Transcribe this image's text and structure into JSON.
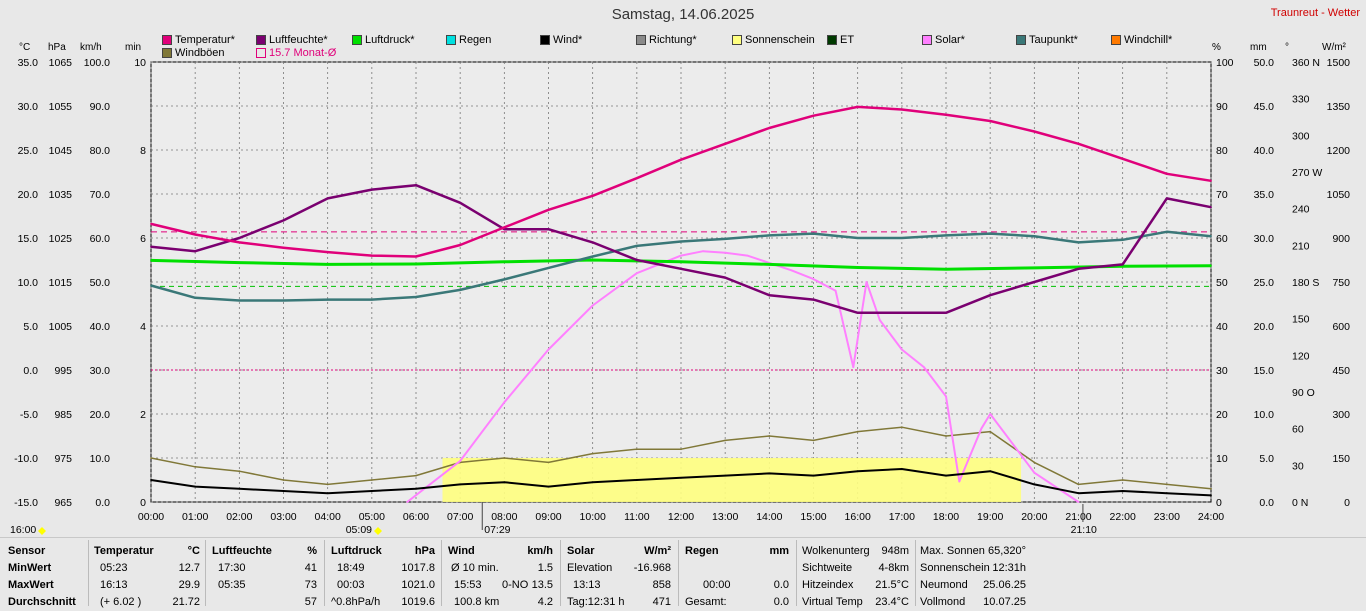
{
  "title": "Samstag, 14.06.2025",
  "brand": "Traunreut - Wetter",
  "legend": [
    {
      "label": "Temperatur*",
      "color": "#e0007a",
      "hollow": false
    },
    {
      "label": "Luftfeuchte*",
      "color": "#7a0070",
      "hollow": false
    },
    {
      "label": "Luftdruck*",
      "color": "#00e000",
      "hollow": false
    },
    {
      "label": "Regen",
      "color": "#00e0e0",
      "hollow": false
    },
    {
      "label": "Wind*",
      "color": "#000000",
      "hollow": false
    },
    {
      "label": "Richtung*",
      "color": "#8a8a8a",
      "hollow": false
    },
    {
      "label": "Sonnenschein",
      "color": "#ffff80",
      "hollow": false
    },
    {
      "label": "ET",
      "color": "#003a00",
      "hollow": false
    },
    {
      "label": "Solar*",
      "color": "#ff80ff",
      "hollow": false
    },
    {
      "label": "Taupunkt*",
      "color": "#3a7878",
      "hollow": false
    },
    {
      "label": "Windchill*",
      "color": "#ff7a00",
      "hollow": false
    },
    {
      "label": "Windböen",
      "color": "#807838",
      "hollow": false
    },
    {
      "label": "15.7 Monat-Ø",
      "color": "#e0007a",
      "hollow": true
    }
  ],
  "units_left": [
    "°C",
    "hPa",
    "km/h",
    "min"
  ],
  "units_right": [
    "%",
    "mm",
    "°",
    "W/m²"
  ],
  "axes": {
    "temp": [
      "35.0",
      "30.0",
      "25.0",
      "20.0",
      "15.0",
      "10.0",
      "5.0",
      "0.0",
      "-5.0",
      "-10.0",
      "-15.0"
    ],
    "press": [
      "1065",
      "1055",
      "1045",
      "1035",
      "1025",
      "1015",
      "1005",
      "995",
      "985",
      "975",
      "965"
    ],
    "wind": [
      "100.0",
      "90.0",
      "80.0",
      "70.0",
      "60.0",
      "50.0",
      "40.0",
      "30.0",
      "20.0",
      "10.0",
      "0.0"
    ],
    "min": [
      "10",
      "8",
      "6",
      "4",
      "2",
      "0"
    ],
    "hum": [
      "100",
      "90",
      "80",
      "70",
      "60",
      "50",
      "40",
      "30",
      "20",
      "10",
      "0"
    ],
    "rain": [
      "50.0",
      "45.0",
      "40.0",
      "35.0",
      "30.0",
      "25.0",
      "20.0",
      "15.0",
      "10.0",
      "5.0",
      "0.0"
    ],
    "dir": [
      "360 N",
      "330",
      "300",
      "270 W",
      "240",
      "210",
      "180 S",
      "150",
      "120",
      "90  O",
      "60",
      "30",
      "0  N"
    ],
    "solar": [
      "1500",
      "1350",
      "1200",
      "1050",
      "900",
      "750",
      "600",
      "450",
      "300",
      "150",
      "0"
    ],
    "time": [
      "00:00",
      "01:00",
      "02:00",
      "03:00",
      "04:00",
      "05:00",
      "06:00",
      "07:00",
      "08:00",
      "09:00",
      "10:00",
      "11:00",
      "12:00",
      "13:00",
      "14:00",
      "15:00",
      "16:00",
      "17:00",
      "18:00",
      "19:00",
      "20:00",
      "21:00",
      "22:00",
      "23:00",
      "24:00"
    ]
  },
  "markers": {
    "left": "16:00",
    "sunrise": "05:09",
    "noon": "07:29",
    "sunset": "21:10"
  },
  "chart_data": {
    "type": "line",
    "title": "Samstag, 14.06.2025",
    "x_range": [
      0,
      24
    ],
    "series": [
      {
        "name": "Temperatur*",
        "axis": "°C",
        "ylim": [
          -15,
          35
        ],
        "x": [
          0,
          1,
          2,
          3,
          4,
          5,
          6,
          7,
          8,
          9,
          10,
          11,
          12,
          13,
          14,
          15,
          16,
          17,
          18,
          19,
          20,
          21,
          22,
          23,
          24
        ],
        "values": [
          16.6,
          15.4,
          14.5,
          13.9,
          13.4,
          13.0,
          12.9,
          14.2,
          16.2,
          18.2,
          19.8,
          21.8,
          23.9,
          25.7,
          27.5,
          28.9,
          29.9,
          29.6,
          29.0,
          28.3,
          27.1,
          25.7,
          24.0,
          22.3,
          21.5
        ]
      },
      {
        "name": "Luftfeuchte*",
        "axis": "%",
        "ylim": [
          0,
          100
        ],
        "x": [
          0,
          1,
          2,
          3,
          4,
          5,
          6,
          7,
          8,
          9,
          10,
          11,
          12,
          13,
          14,
          15,
          16,
          17,
          18,
          19,
          20,
          21,
          22,
          23,
          24
        ],
        "values": [
          58,
          57,
          60,
          64,
          69,
          71,
          72,
          68,
          62,
          62,
          59,
          55,
          53,
          51,
          47,
          46,
          43,
          43,
          43,
          47,
          50,
          53,
          54,
          69,
          67
        ]
      },
      {
        "name": "Luftdruck*",
        "axis": "hPa",
        "ylim": [
          965,
          1065
        ],
        "x": [
          0,
          2,
          4,
          6,
          8,
          10,
          12,
          14,
          16,
          18,
          20,
          22,
          24
        ],
        "values": [
          1019.9,
          1019.4,
          1019.0,
          1019.1,
          1019.6,
          1020.0,
          1019.6,
          1019.0,
          1018.3,
          1017.9,
          1018.2,
          1018.6,
          1018.7
        ]
      },
      {
        "name": "Taupunkt*",
        "axis": "°C",
        "ylim": [
          -15,
          35
        ],
        "x": [
          0,
          1,
          2,
          3,
          4,
          5,
          6,
          7,
          8,
          9,
          10,
          11,
          12,
          13,
          14,
          15,
          16,
          17,
          18,
          19,
          20,
          21,
          22,
          23,
          24
        ],
        "values": [
          9.6,
          8.2,
          7.9,
          7.9,
          8.0,
          8.0,
          8.3,
          9.1,
          10.3,
          11.6,
          12.9,
          14.1,
          14.6,
          14.9,
          15.3,
          15.5,
          15.0,
          15.0,
          15.3,
          15.5,
          15.2,
          14.5,
          14.8,
          15.7,
          15.2
        ]
      },
      {
        "name": "Solar*",
        "axis": "W/m²",
        "ylim": [
          0,
          1500
        ],
        "x": [
          5.8,
          7,
          8,
          9,
          10,
          11,
          12,
          12.5,
          13,
          13.5,
          14,
          14.5,
          15,
          15.5,
          15.9,
          16.2,
          16.5,
          17,
          17.5,
          18,
          18.3,
          18.8,
          19,
          19.5,
          20,
          21
        ],
        "values": [
          0,
          140,
          340,
          520,
          670,
          780,
          840,
          855,
          850,
          840,
          815,
          790,
          760,
          720,
          460,
          750,
          620,
          520,
          460,
          360,
          70,
          250,
          300,
          200,
          100,
          0
        ]
      },
      {
        "name": "Wind*",
        "axis": "km/h",
        "ylim": [
          0,
          100
        ],
        "x": [
          0,
          1,
          2,
          3,
          4,
          5,
          6,
          7,
          8,
          9,
          10,
          11,
          12,
          13,
          14,
          15,
          16,
          17,
          18,
          19,
          20,
          21,
          22,
          23,
          24
        ],
        "values": [
          5.0,
          3.5,
          3.0,
          2.5,
          2.0,
          2.5,
          3.0,
          4.0,
          4.5,
          3.5,
          4.5,
          5.0,
          5.5,
          6.0,
          6.5,
          6.0,
          7.0,
          7.5,
          6.0,
          7.0,
          4.0,
          2.0,
          2.5,
          2.0,
          1.5
        ]
      },
      {
        "name": "Windböen",
        "axis": "km/h",
        "ylim": [
          0,
          100
        ],
        "x": [
          0,
          1,
          2,
          3,
          4,
          5,
          6,
          7,
          8,
          9,
          10,
          11,
          12,
          13,
          14,
          15,
          16,
          17,
          18,
          19,
          20,
          21,
          22,
          23,
          24
        ],
        "values": [
          10,
          8,
          7,
          5,
          4,
          5,
          6,
          9,
          10,
          9,
          11,
          12,
          12,
          14,
          15,
          14,
          16,
          17,
          15,
          16,
          9,
          4,
          5,
          4,
          3
        ]
      },
      {
        "name": "Sonnenschein",
        "axis": "min",
        "ylim": [
          0,
          10
        ],
        "x": [
          6.6,
          19.7
        ],
        "values": [
          1,
          1
        ]
      }
    ],
    "reference_lines": [
      {
        "label": "15.7 Monat-Ø",
        "value": 15.7,
        "axis": "°C",
        "color": "#e0007a"
      },
      {
        "value": 0,
        "axis": "°C",
        "color": "#e0007a"
      },
      {
        "value": 49,
        "axis": "%",
        "color": "#00c000"
      }
    ],
    "legend_placement": "top",
    "grid": true
  },
  "stats": {
    "sensor": {
      "header": "Sensor",
      "rows": [
        "MinWert",
        "MaxWert",
        "Durchschnitt"
      ]
    },
    "temperatur": {
      "header": "Temperatur",
      "unit": "°C",
      "rows": [
        [
          "05:23",
          "12.7"
        ],
        [
          "16:13",
          "29.9"
        ],
        [
          "(+ 6.02 )",
          "21.72"
        ]
      ]
    },
    "luftfeuchte": {
      "header": "Luftfeuchte",
      "unit": "%",
      "rows": [
        [
          "17:30",
          "41"
        ],
        [
          "05:35",
          "73"
        ],
        [
          "",
          "57"
        ]
      ]
    },
    "luftdruck": {
      "header": "Luftdruck",
      "unit": "hPa",
      "rows": [
        [
          "18:49",
          "1017.8"
        ],
        [
          "00:03",
          "1021.0"
        ],
        [
          "^0.8hPa/h",
          "1019.6"
        ]
      ]
    },
    "wind": {
      "header": "Wind",
      "unit": "km/h",
      "rows": [
        [
          "Ø 10 min.",
          "",
          "1.5"
        ],
        [
          "15:53",
          "0-NO",
          "13.5"
        ],
        [
          "100.8 km",
          "",
          "4.2"
        ]
      ]
    },
    "solar": {
      "header": "Solar",
      "unit": "W/m²",
      "rows": [
        [
          "Elevation",
          "-16.968"
        ],
        [
          "13:13",
          "858"
        ],
        [
          "Tag:12:31 h",
          "471"
        ]
      ]
    },
    "regen": {
      "header": "Regen",
      "unit": "mm",
      "rows": [
        [
          "",
          ""
        ],
        [
          "00:00",
          "0.0"
        ],
        [
          "Gesamt:",
          "0.0"
        ]
      ]
    },
    "misc": {
      "rows": [
        [
          "Wolkenunterg",
          "948m"
        ],
        [
          "Sichtweite",
          "4-8km"
        ],
        [
          "Hitzeindex",
          "21.5°C"
        ],
        [
          "Virtual Temp",
          "23.4°C"
        ]
      ]
    },
    "sun": {
      "rows": [
        [
          "Max. Sonnen",
          "65,320°"
        ],
        [
          "Sonnenschein",
          "12:31h"
        ],
        [
          "Neumond",
          "25.06.25"
        ],
        [
          "Vollmond",
          "10.07.25"
        ]
      ]
    }
  }
}
